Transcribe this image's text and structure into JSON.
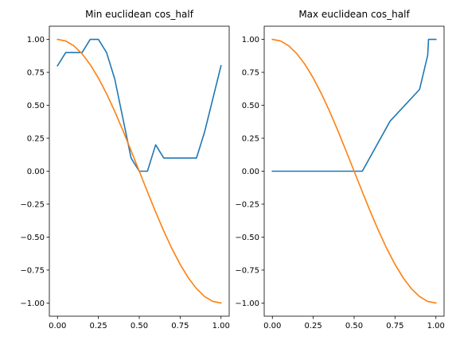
{
  "chart_data": [
    {
      "type": "line",
      "title": "Min euclidean cos_half",
      "xlim": [
        -0.05,
        1.05
      ],
      "ylim": [
        -1.1,
        1.1
      ],
      "xticks": [
        0.0,
        0.25,
        0.5,
        0.75,
        1.0
      ],
      "xtick_labels": [
        "0.00",
        "0.25",
        "0.50",
        "0.75",
        "1.00"
      ],
      "yticks": [
        1.0,
        0.75,
        0.5,
        0.25,
        0.0,
        -0.25,
        -0.5,
        -0.75,
        -1.0
      ],
      "ytick_labels": [
        "1.00",
        "0.75",
        "0.50",
        "0.25",
        "0.00",
        "−0.25",
        "−0.50",
        "−0.75",
        "−1.00"
      ],
      "grid": false,
      "series": [
        {
          "color": "#1f77b4",
          "x": [
            0.0,
            0.05,
            0.1,
            0.15,
            0.2,
            0.25,
            0.3,
            0.35,
            0.4,
            0.45,
            0.5,
            0.55,
            0.6,
            0.65,
            0.7,
            0.75,
            0.8,
            0.85,
            0.9,
            0.95,
            1.0
          ],
          "y": [
            0.8,
            0.9,
            0.9,
            0.9,
            1.0,
            1.0,
            0.9,
            0.7,
            0.4,
            0.1,
            0.0,
            0.0,
            0.2,
            0.1,
            0.1,
            0.1,
            0.1,
            0.1,
            0.3,
            0.55,
            0.8
          ]
        },
        {
          "color": "#ff7f0e",
          "x": [
            0.0,
            0.05,
            0.1,
            0.15,
            0.2,
            0.25,
            0.3,
            0.35,
            0.4,
            0.45,
            0.5,
            0.55,
            0.6,
            0.65,
            0.7,
            0.75,
            0.8,
            0.85,
            0.9,
            0.95,
            1.0
          ],
          "y": [
            1.0,
            0.988,
            0.951,
            0.891,
            0.809,
            0.707,
            0.588,
            0.454,
            0.309,
            0.156,
            0.0,
            -0.156,
            -0.309,
            -0.454,
            -0.588,
            -0.707,
            -0.809,
            -0.891,
            -0.951,
            -0.988,
            -1.0
          ]
        }
      ]
    },
    {
      "type": "line",
      "title": "Max euclidean cos_half",
      "xlim": [
        -0.05,
        1.05
      ],
      "ylim": [
        -1.1,
        1.1
      ],
      "xticks": [
        0.0,
        0.25,
        0.5,
        0.75,
        1.0
      ],
      "xtick_labels": [
        "0.00",
        "0.25",
        "0.50",
        "0.75",
        "1.00"
      ],
      "yticks": [
        1.0,
        0.75,
        0.5,
        0.25,
        0.0,
        -0.25,
        -0.5,
        -0.75,
        -1.0
      ],
      "ytick_labels": [
        "1.00",
        "0.75",
        "0.50",
        "0.25",
        "0.00",
        "−0.25",
        "−0.50",
        "−0.75",
        "−1.00"
      ],
      "grid": false,
      "series": [
        {
          "color": "#1f77b4",
          "x": [
            0.0,
            0.55,
            0.72,
            0.9,
            0.95,
            0.955,
            1.0
          ],
          "y": [
            0.0,
            0.0,
            0.38,
            0.62,
            0.88,
            1.0,
            1.0
          ]
        },
        {
          "color": "#ff7f0e",
          "x": [
            0.0,
            0.05,
            0.1,
            0.15,
            0.2,
            0.25,
            0.3,
            0.35,
            0.4,
            0.45,
            0.5,
            0.55,
            0.6,
            0.65,
            0.7,
            0.75,
            0.8,
            0.85,
            0.9,
            0.95,
            1.0
          ],
          "y": [
            1.0,
            0.988,
            0.951,
            0.891,
            0.809,
            0.707,
            0.588,
            0.454,
            0.309,
            0.156,
            0.0,
            -0.156,
            -0.309,
            -0.454,
            -0.588,
            -0.707,
            -0.809,
            -0.891,
            -0.951,
            -0.988,
            -1.0
          ]
        }
      ]
    }
  ]
}
